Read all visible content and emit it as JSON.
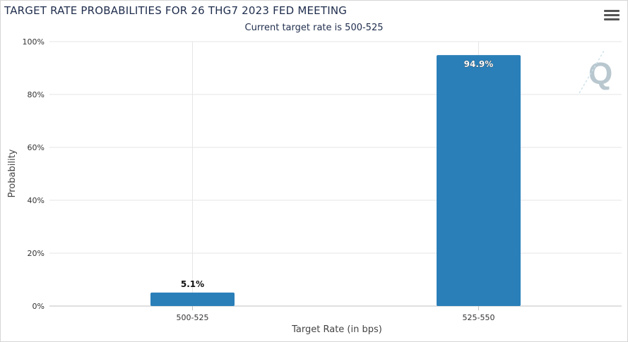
{
  "header": {
    "title": "TARGET RATE PROBABILITIES FOR 26 THG7 2023 FED MEETING",
    "subtitle": "Current target rate is 500-525"
  },
  "icons": {
    "menu": "hamburger-menu-icon",
    "watermark": "q-logo-watermark"
  },
  "colors": {
    "bar": "#2a7fb8",
    "grid": "#e6e6e6",
    "axis": "#c0c0c0"
  },
  "chart_data": {
    "type": "bar",
    "title": "TARGET RATE PROBABILITIES FOR 26 THG7 2023 FED MEETING",
    "subtitle": "Current target rate is 500-525",
    "xlabel": "Target Rate (in bps)",
    "ylabel": "Probability",
    "categories": [
      "500-525",
      "525-550"
    ],
    "values": [
      5.1,
      94.9
    ],
    "data_labels": [
      "5.1%",
      "94.9%"
    ],
    "ylim": [
      0,
      100
    ],
    "yticks": [
      "0%",
      "20%",
      "40%",
      "60%",
      "80%",
      "100%"
    ],
    "grid": true,
    "legend": "none"
  }
}
